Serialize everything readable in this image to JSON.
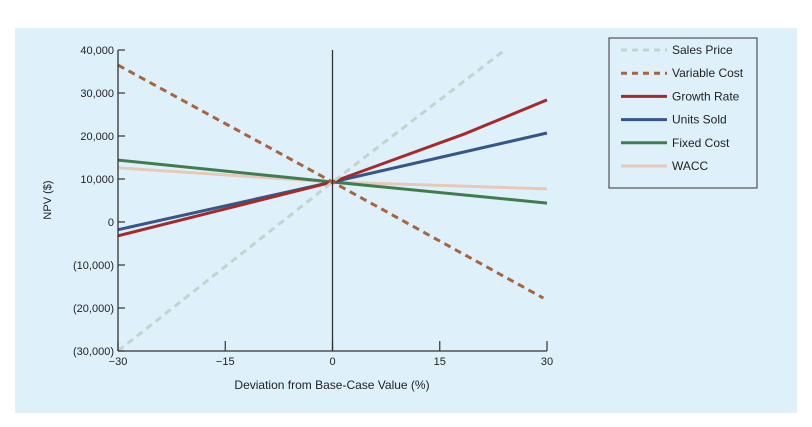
{
  "chart_data": {
    "type": "line",
    "title": "",
    "xlabel": "Deviation from Base-Case Value (%)",
    "ylabel": "NPV ($)",
    "xlim": [
      -30,
      30
    ],
    "ylim": [
      -30000,
      40000
    ],
    "xticks": [
      -30,
      -15,
      0,
      15,
      30
    ],
    "xtick_labels": [
      "−30",
      "−15",
      "0",
      "15",
      "30"
    ],
    "yticks": [
      40000,
      30000,
      20000,
      10000,
      0,
      -10000,
      -20000,
      -30000
    ],
    "ytick_labels": [
      "40,000",
      "30,000",
      "20,000",
      "10,000",
      "0",
      "(10,000)",
      "(20,000)",
      "(30,000)"
    ],
    "grid": false,
    "legend": "top-right, outside plot",
    "series": [
      {
        "name": "Sales Price",
        "color": "#c3d3cf",
        "style": "dashed",
        "points": [
          [
            -30,
            -30000
          ],
          [
            0,
            9300
          ],
          [
            24.1,
            40000
          ]
        ]
      },
      {
        "name": "Variable Cost",
        "color": "#a9633f",
        "style": "dashed",
        "points": [
          [
            -30,
            36500
          ],
          [
            0,
            9300
          ],
          [
            29.5,
            -17700
          ]
        ]
      },
      {
        "name": "Growth Rate",
        "color": "#a52a2a",
        "style": "solid",
        "points": [
          [
            -30,
            -3200
          ],
          [
            0,
            9300
          ],
          [
            18.5,
            20500
          ],
          [
            30,
            28400
          ]
        ]
      },
      {
        "name": "Units Sold",
        "color": "#36558a",
        "style": "solid",
        "points": [
          [
            -30,
            -1800
          ],
          [
            0,
            9300
          ],
          [
            30,
            20700
          ]
        ]
      },
      {
        "name": "Fixed Cost",
        "color": "#3f7d4f",
        "style": "solid",
        "points": [
          [
            -30,
            14400
          ],
          [
            0,
            9300
          ],
          [
            30,
            4400
          ]
        ]
      },
      {
        "name": "WACC",
        "color": "#e8c8b8",
        "style": "solid",
        "points": [
          [
            -30,
            12600
          ],
          [
            0,
            9300
          ],
          [
            30,
            7700
          ]
        ]
      }
    ]
  }
}
